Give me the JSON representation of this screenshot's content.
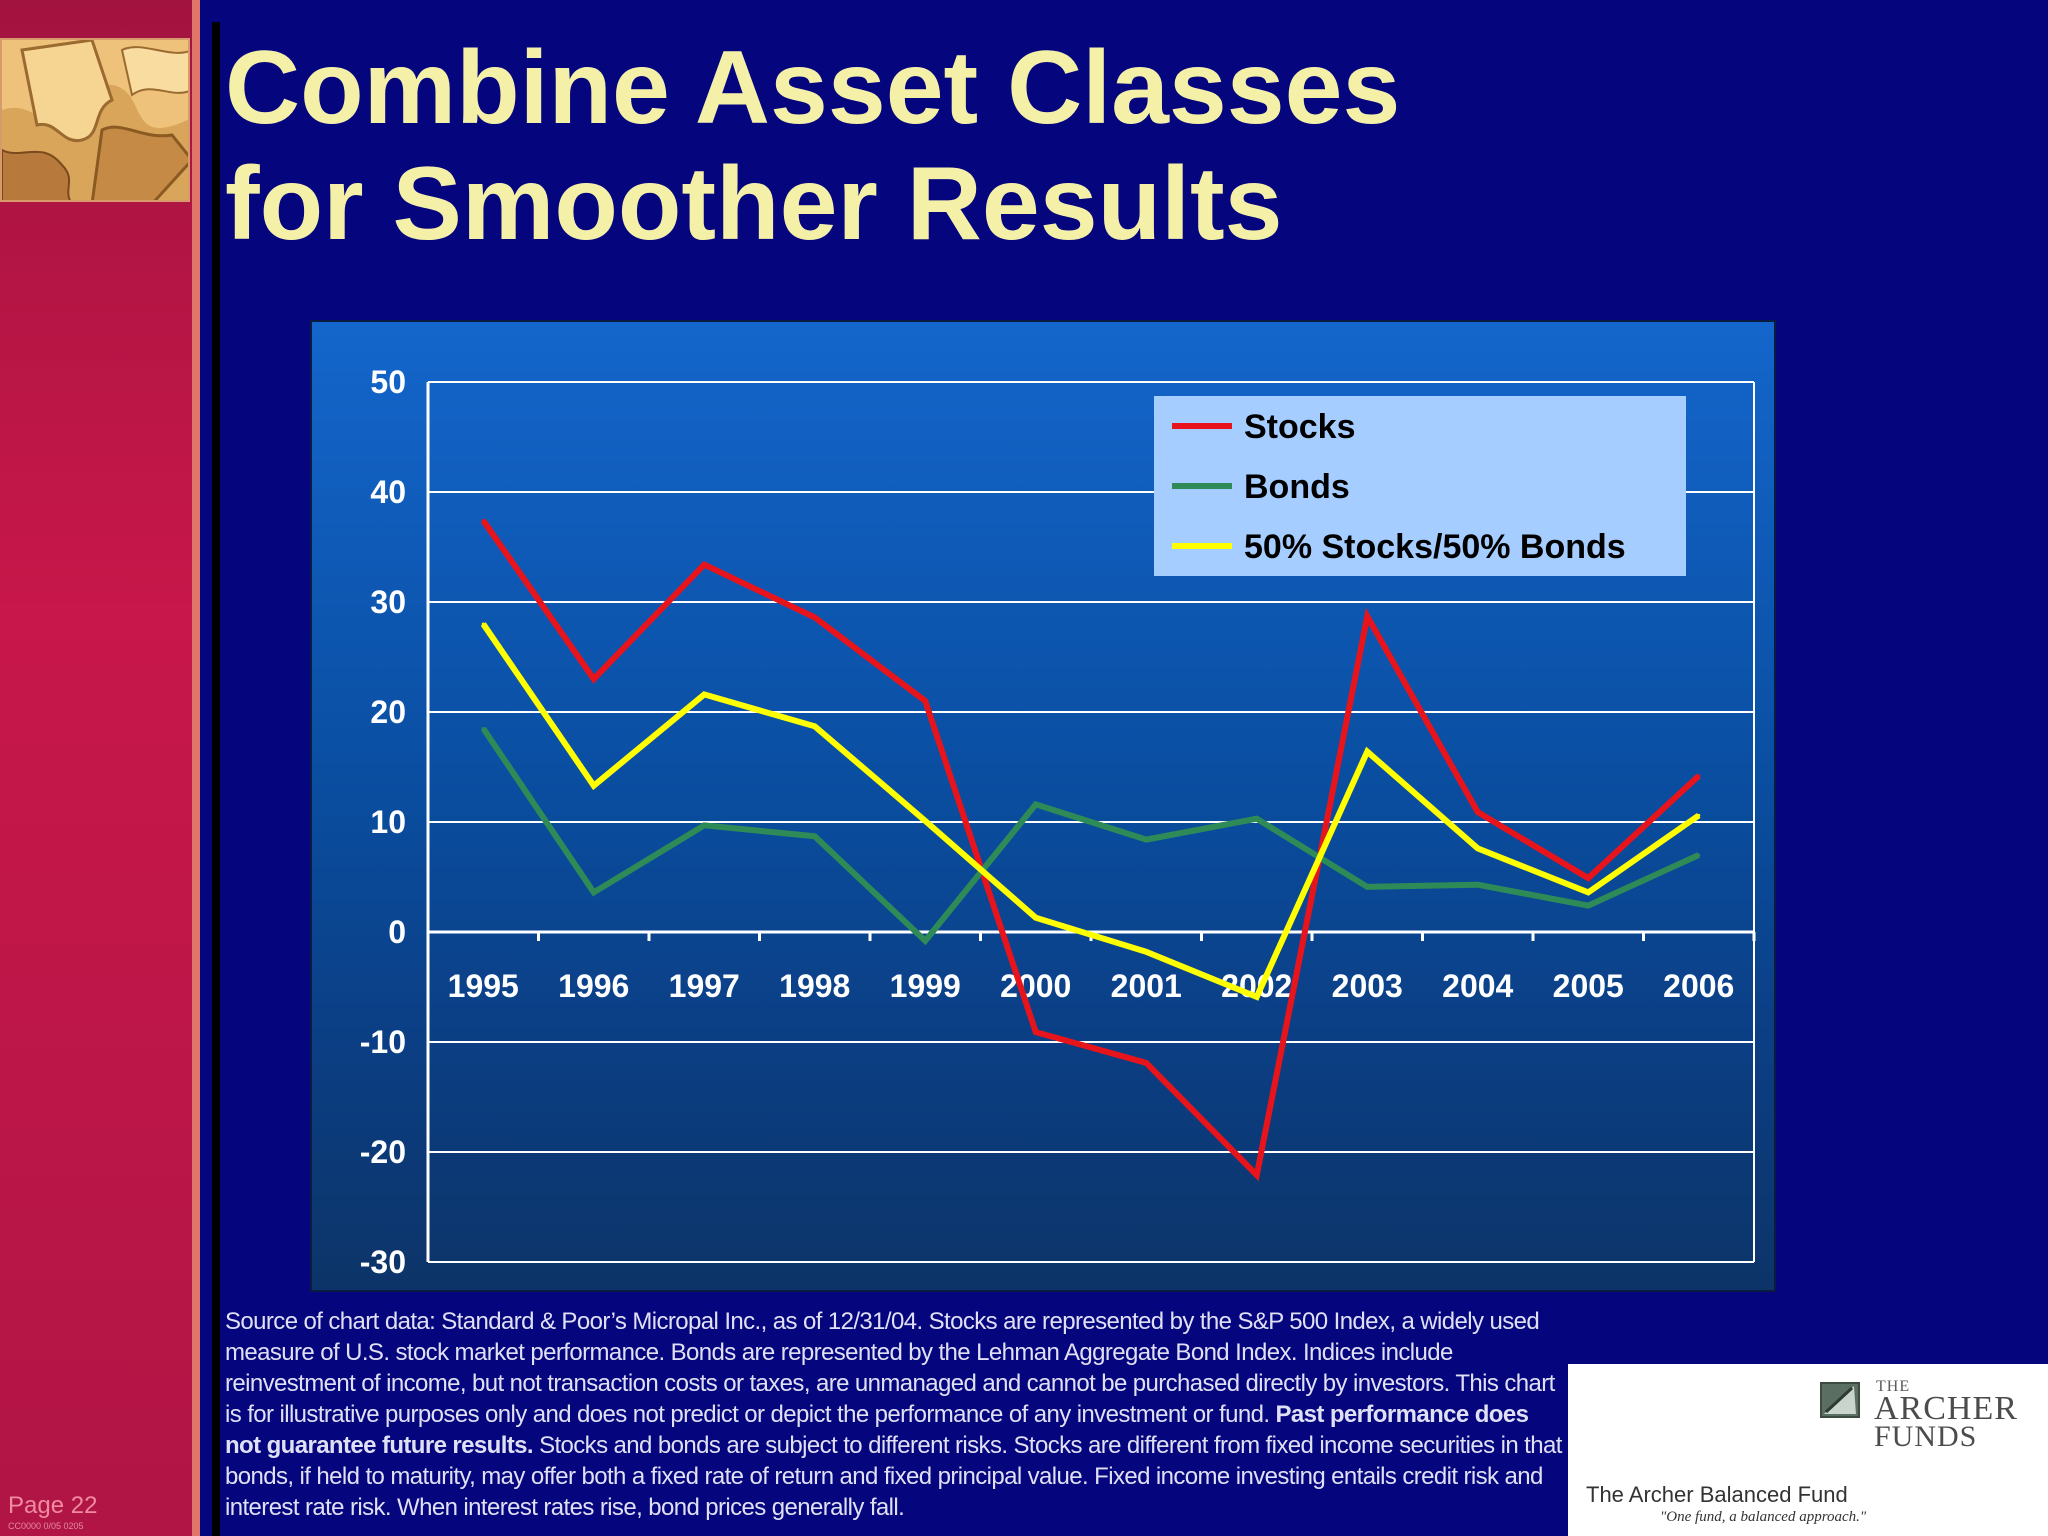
{
  "slide": {
    "title_line1": "Combine Asset Classes",
    "title_line2": "for Smoother Results",
    "page_label": "Page 22",
    "code": "CC0000 0/05 0205"
  },
  "source": {
    "part1": "Source of chart data: Standard & Poor’s Micropal Inc., as of 12/31/04. Stocks are represented by the S&P 500 Index, a widely used measure of U.S. stock market performance. Bonds are represented by the Lehman Aggregate Bond Index. Indices include reinvestment of income, but not transaction costs or taxes, are unmanaged and cannot be purchased directly by investors. This chart is for illustrative purposes only and does not predict or depict the performance of any investment or fund.",
    "bold": "Past performance does not guarantee future results.",
    "part2": "Stocks and bonds are subject to different risks. Stocks are different from fixed income securities in that  bonds, if held to maturity, may offer both a fixed rate of return and fixed principal value. Fixed income investing entails credit risk and interest rate risk. When interest rates rise, bond prices generally fall."
  },
  "logo": {
    "the": "THE",
    "archer": "ARCHER",
    "funds": "FUNDS",
    "fund_name": "The Archer Balanced Fund",
    "tagline": "\"One fund, a balanced approach.\""
  },
  "chart_data": {
    "type": "line",
    "title": "",
    "xlabel": "",
    "ylabel": "",
    "categories": [
      "1995",
      "1996",
      "1997",
      "1998",
      "1999",
      "2000",
      "2001",
      "2002",
      "2003",
      "2004",
      "2005",
      "2006"
    ],
    "ylim": [
      -30,
      50
    ],
    "yticks": [
      50,
      40,
      30,
      20,
      10,
      0,
      -10,
      -20,
      -30
    ],
    "grid": true,
    "legend_position": "top-right",
    "series": [
      {
        "name": "Stocks",
        "color": "#e8141c",
        "values": [
          37.4,
          23.0,
          33.4,
          28.6,
          21.0,
          -9.1,
          -11.9,
          -22.1,
          28.7,
          10.9,
          4.9,
          14.2
        ]
      },
      {
        "name": "Bonds",
        "color": "#2e8b57",
        "values": [
          18.5,
          3.6,
          9.7,
          8.7,
          -0.8,
          11.6,
          8.4,
          10.3,
          4.1,
          4.3,
          2.4,
          7.0
        ]
      },
      {
        "name": "50% Stocks/50% Bonds",
        "color": "#ffff00",
        "values": [
          28.0,
          13.3,
          21.6,
          18.7,
          10.1,
          1.3,
          -1.8,
          -5.9,
          16.4,
          7.6,
          3.6,
          10.6
        ]
      }
    ]
  }
}
